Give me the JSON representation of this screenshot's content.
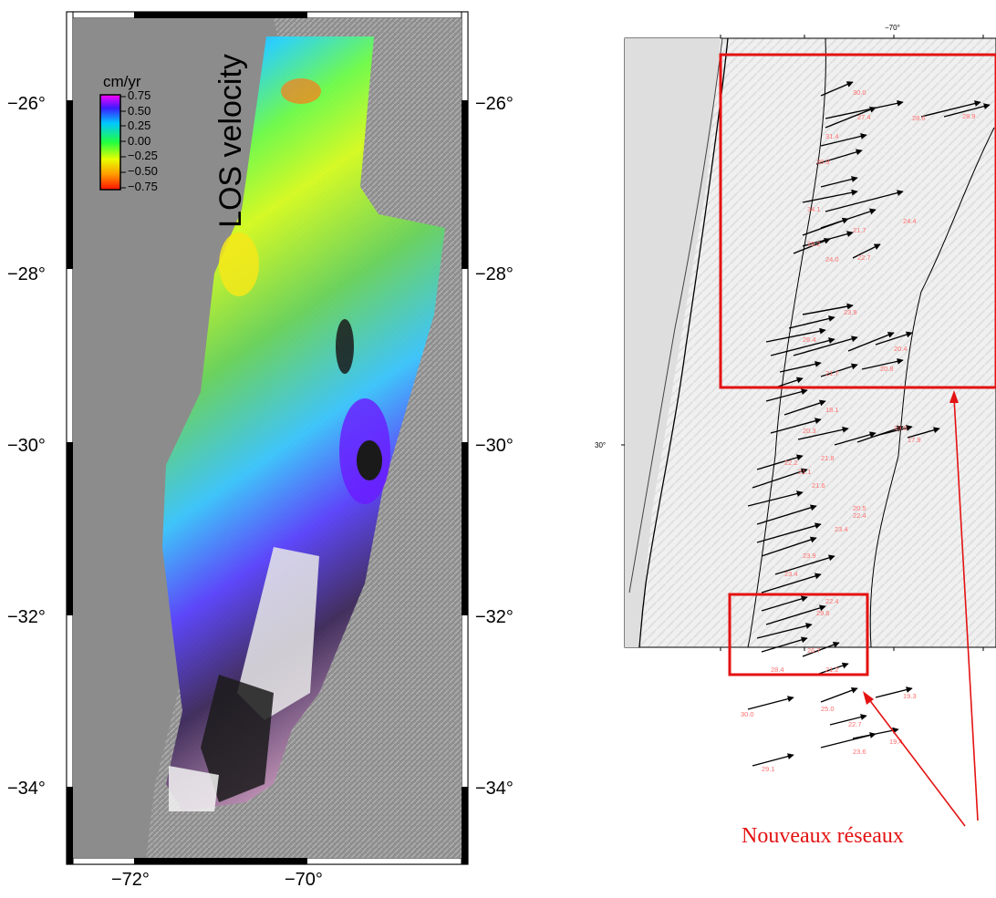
{
  "left_map": {
    "title": "LOS velocity",
    "colorbar": {
      "unit": "cm/yr",
      "ticks": [
        "0.75",
        "0.50",
        "0.25",
        "0.00",
        "−0.25",
        "−0.50",
        "−0.75"
      ]
    },
    "lat_labels_left": [
      "−26°",
      "−28°",
      "−30°",
      "−32°",
      "−34°"
    ],
    "lat_labels_right": [
      "−26°",
      "−28°",
      "−30°",
      "−32°",
      "−34°"
    ],
    "lon_labels": [
      "−72°",
      "−70°"
    ]
  },
  "right_map": {
    "lon_label_top": "−70°",
    "lat_label_left": "30°",
    "vector_labels": [
      "30.0",
      "27.4",
      "28.6",
      "28.9",
      "31.4",
      "30.9",
      "34.1",
      "24.4",
      "21.7",
      "29.2",
      "22.7",
      "24.0",
      "23.9",
      "20.4",
      "26.4",
      "21.7",
      "20.8",
      "18.1",
      "19.0",
      "17.9",
      "20.3",
      "21.8",
      "22.2",
      "21.1",
      "21.6",
      "20.5",
      "22.4",
      "23.4",
      "23.9",
      "23.4",
      "22.4",
      "29.6",
      "26.7",
      "28.4",
      "21.2",
      "19.3",
      "30.0",
      "25.0",
      "22.7",
      "23.6",
      "19.4",
      "29.1"
    ]
  },
  "caption": "Nouveaux réseaux",
  "colors": {
    "annotation": "#e41212",
    "vector": "#000000",
    "vector_label": "#ff6f6f",
    "map_gray": "#8c8c8c"
  }
}
